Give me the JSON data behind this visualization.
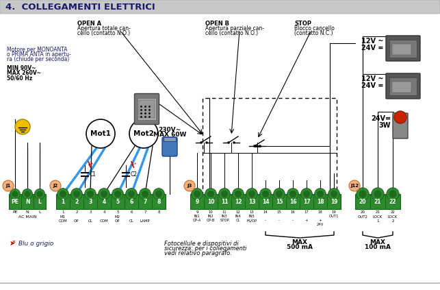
{
  "title": "4.  COLLEGAMENTI ELETTRICI",
  "title_color": "#1a1a6e",
  "title_bg": "#c8c8c8",
  "main_bg": "#ffffff",
  "connector_bg": "#2d8a2d",
  "connector_border": "#1a5c1a",
  "label_color": "#1a1a6e",
  "red_color": "#cc0000",
  "blue_color": "#4488dd",
  "j1_pins": [
    "PE",
    "N",
    "L"
  ],
  "j2_pins": [
    "1",
    "2",
    "3",
    "4",
    "5",
    "6",
    "7",
    "8"
  ],
  "j3_pins": [
    "9",
    "10",
    "11",
    "12",
    "13",
    "14",
    "15",
    "16",
    "17",
    "18",
    "19"
  ],
  "j12_pins": [
    "20",
    "21",
    "22"
  ],
  "j1_sub1": [
    "PE",
    "N",
    "L"
  ],
  "j1_sub2": "AC MAIN",
  "j2_sub1": [
    "1",
    "2",
    "3",
    "4",
    "5",
    "6",
    "7",
    "8"
  ],
  "j2_sub2": [
    "M1",
    "",
    "",
    "",
    "M2",
    "",
    "",
    ""
  ],
  "j2_sub3": [
    "COM",
    "OP",
    "CL",
    "COM",
    "OP",
    "CL",
    "LAMP",
    ""
  ],
  "j3_sub1": [
    "9",
    "10",
    "11",
    "12",
    "13",
    "14",
    "15",
    "16",
    "17",
    "18",
    "19"
  ],
  "j3_sub2": [
    "IN1",
    "IN2",
    "IN3",
    "IN4",
    "IN5",
    "",
    "",
    "",
    "",
    "",
    "+"
  ],
  "j3_sub3": [
    "OP-A",
    "OP-B",
    "STOP",
    "CL",
    "FS/OP",
    "-",
    "-",
    "-",
    "+",
    "24V",
    "OUT1"
  ],
  "j12_sub1": [
    "20",
    "21",
    "22"
  ],
  "j12_sub2": [
    "OUT2",
    "LOCK",
    "LOCK"
  ],
  "j12_sub3": [
    "",
    "1",
    "2"
  ],
  "open_a_line1": "OPEN A",
  "open_a_line2": "Apertura totale can-",
  "open_a_line3": "cello (contatto N.O.)",
  "open_b_line1": "OPEN B",
  "open_b_line2": "Apertura parziale can-",
  "open_b_line3": "cello (contatto N.O.)",
  "stop_line1": "STOP",
  "stop_line2": "Blocco cancello",
  "stop_line3": "(contatto N.C.)",
  "motor_line1": "Motore per MONOANTA",
  "motor_line2": "o PRIMA ANTA in apertu-",
  "motor_line3": "ra (chiude per seconda)",
  "volt_line1": "MIN 90V~",
  "volt_line2": "MAX 260V~",
  "volt_line3": "50/60 Hz",
  "lamp_line1": "230V~",
  "lamp_line2": "MAX 60W",
  "v12_24_1a": "12V ~",
  "v12_24_1b": "24V =",
  "v12_24_2a": "12V ~",
  "v12_24_2b": "24V =",
  "v24_3wa": "24V=",
  "v24_3wb": "3W",
  "blue_note_sym": "♥",
  "blue_note_txt": " Blu o grigio",
  "footer_line1": "Fotocellule e dispositivi di",
  "footer_line2": "sicurezza: per i collegamenti",
  "footer_line3": "vedi relativo paragrafo.",
  "max_500a": "MAX",
  "max_500b": "500 mA",
  "max_100a": "MAX",
  "max_100b": "100 mA"
}
